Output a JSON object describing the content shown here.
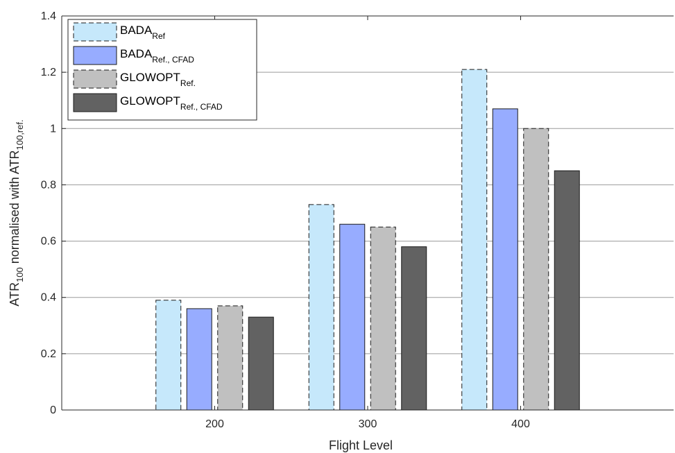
{
  "chart_data": {
    "type": "bar",
    "categories": [
      "200",
      "300",
      "400"
    ],
    "series": [
      {
        "name": "BADA",
        "name_sub": "Ref",
        "values": [
          0.39,
          0.73,
          1.21
        ],
        "color": "#c6e8fb",
        "dashed": true
      },
      {
        "name": "BADA",
        "name_sub": "Ref., CFAD",
        "values": [
          0.36,
          0.66,
          1.07
        ],
        "color": "#97acff",
        "dashed": false
      },
      {
        "name": "GLOWOPT",
        "name_sub": "Ref.",
        "values": [
          0.37,
          0.65,
          1.0
        ],
        "color": "#c0c0c0",
        "dashed": true
      },
      {
        "name": "GLOWOPT",
        "name_sub": "Ref., CFAD",
        "values": [
          0.33,
          0.58,
          0.85
        ],
        "color": "#626262",
        "dashed": false
      }
    ],
    "xlabel": "Flight Level",
    "ylabel": {
      "p1": "ATR",
      "s1": "100",
      "p2": " normalised with ATR",
      "s2": "100,ref."
    },
    "ylim": [
      0,
      1.4
    ],
    "yticks": [
      "0",
      "0.2",
      "0.4",
      "0.6",
      "0.8",
      "1",
      "1.2",
      "1.4"
    ],
    "grid": "horizontal",
    "legend_position": "top-left"
  }
}
